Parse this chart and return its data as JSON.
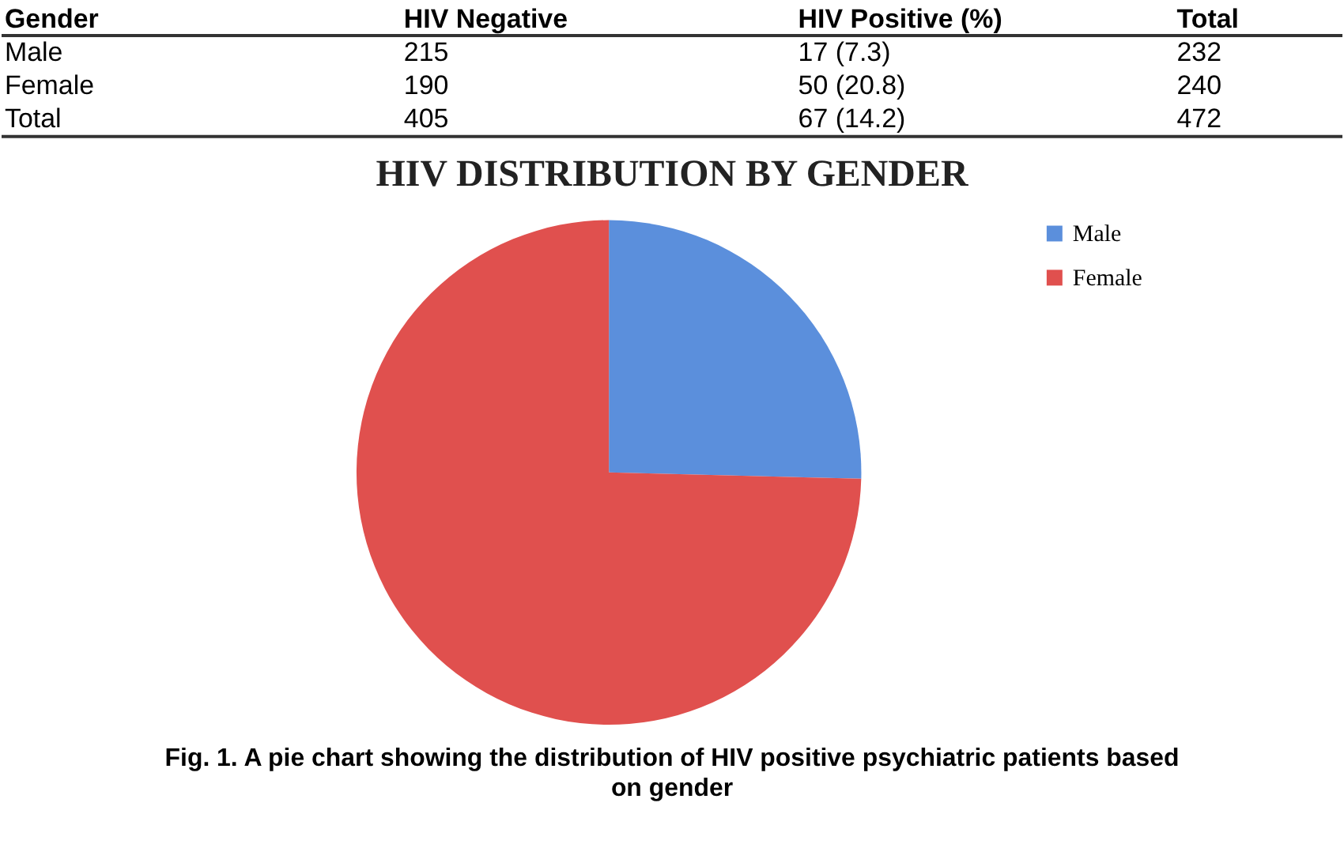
{
  "chart_data": [
    {
      "type": "other",
      "annotations": [
        "Gender",
        "HIV Negative",
        "HIV Positive (%)",
        "Total",
        "Male",
        "215",
        "17 (7.3)",
        "232",
        "Female",
        "190",
        "50 (20.8)",
        "240",
        "Total",
        "405",
        "67 (14.2)",
        "472"
      ]
    },
    {
      "type": "pie",
      "title": "HIV DISTRIBUTION BY GENDER",
      "categories": [
        "Male",
        "Female"
      ],
      "values": [
        25.4,
        74.6
      ],
      "colors": [
        "#5b8fdc",
        "#e0504e"
      ],
      "legend": "right",
      "annotations": [
        "Fig. 1. A pie chart showing the distribution of HIV positive psychiatric patients based on gender"
      ]
    }
  ]
}
